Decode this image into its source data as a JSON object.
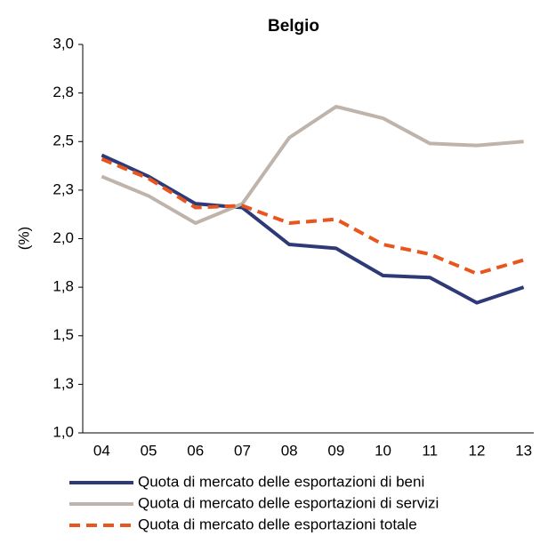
{
  "chart_data": {
    "type": "line",
    "title": "Belgio",
    "y_label": "(%)",
    "categories": [
      "04",
      "05",
      "06",
      "07",
      "08",
      "09",
      "10",
      "11",
      "12",
      "13"
    ],
    "ylim": [
      1.0,
      3.0
    ],
    "yticks": [
      {
        "value": 1.0,
        "label": "1,0"
      },
      {
        "value": 1.25,
        "label": "1,3"
      },
      {
        "value": 1.5,
        "label": "1,5"
      },
      {
        "value": 1.75,
        "label": "1,8"
      },
      {
        "value": 2.0,
        "label": "2,0"
      },
      {
        "value": 2.25,
        "label": "2,3"
      },
      {
        "value": 2.5,
        "label": "2,5"
      },
      {
        "value": 2.75,
        "label": "2,8"
      },
      {
        "value": 3.0,
        "label": "3,0"
      }
    ],
    "grid": false,
    "series": [
      {
        "name": "Quota di mercato delle esportazioni di beni",
        "color": "#2e3a78",
        "dashed": false,
        "values": [
          2.43,
          2.32,
          2.18,
          2.16,
          1.97,
          1.95,
          1.81,
          1.8,
          1.67,
          1.75
        ]
      },
      {
        "name": "Quota di mercato delle esportazioni di servizi",
        "color": "#bfb4ab",
        "dashed": false,
        "values": [
          2.32,
          2.22,
          2.08,
          2.18,
          2.52,
          2.68,
          2.62,
          2.49,
          2.48,
          2.5
        ]
      },
      {
        "name": "Quota di mercato delle esportazioni totale",
        "color": "#e8561e",
        "dashed": true,
        "values": [
          2.41,
          2.31,
          2.16,
          2.17,
          2.08,
          2.1,
          1.97,
          1.92,
          1.82,
          1.89
        ]
      }
    ]
  }
}
